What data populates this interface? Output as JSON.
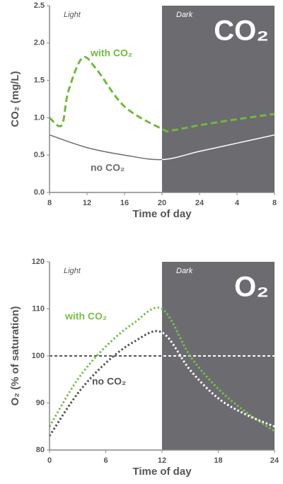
{
  "chart_data": [
    {
      "type": "line",
      "badge": "CO₂",
      "region_labels": [
        "Light",
        "Dark"
      ],
      "xlabel": "Time of day",
      "ylabel": "CO₂ (mg/L)",
      "xlim": [
        8,
        32
      ],
      "xticks": [
        8,
        12,
        16,
        20,
        24,
        {
          "value": 28,
          "label": "4"
        },
        {
          "value": 32,
          "label": "8"
        }
      ],
      "ylim": [
        0,
        2.5
      ],
      "yticks": [
        {
          "value": 0,
          "label": "0.0"
        },
        0.5,
        {
          "value": 1,
          "label": "1.0"
        },
        1.5,
        {
          "value": 2,
          "label": "2.0"
        },
        2.5
      ],
      "dark_xrange": [
        20,
        32
      ],
      "dark_color": "#6b6b70",
      "series": [
        {
          "name": "with CO₂",
          "color": "#6fba3c",
          "dark_line_color": "#6fba3c",
          "dash": "dashed",
          "x": [
            8,
            9.3,
            10,
            11.5,
            13,
            16,
            20,
            21,
            24,
            28,
            32
          ],
          "values": [
            1.0,
            0.9,
            1.35,
            1.8,
            1.65,
            1.15,
            0.85,
            0.83,
            0.9,
            0.98,
            1.05
          ]
        },
        {
          "name": "no CO₂",
          "color": "#6d6d6d",
          "dark_line_color": "#ffffff",
          "dash": "solid",
          "x": [
            8,
            12,
            16,
            20,
            24,
            28,
            32
          ],
          "values": [
            0.77,
            0.6,
            0.5,
            0.44,
            0.55,
            0.66,
            0.77
          ]
        }
      ]
    },
    {
      "type": "line",
      "badge": "O₂",
      "region_labels": [
        "Light",
        "Dark"
      ],
      "xlabel": "Time of day",
      "ylabel": "O₂ (% of saturation)",
      "xlim": [
        0,
        24
      ],
      "xticks": [
        0,
        6,
        12,
        18,
        24
      ],
      "ylim": [
        80,
        120
      ],
      "yticks": [
        80,
        90,
        100,
        110,
        120
      ],
      "dark_xrange": [
        12,
        24
      ],
      "dark_color": "#6b6b70",
      "reference_line": 100,
      "reference_color": "#555555",
      "reference_dark_color": "#ffffff",
      "series": [
        {
          "name": "with CO₂",
          "color": "#78c04a",
          "dark_line_color": "#78c04a",
          "dash": "dotted",
          "x": [
            0,
            3,
            6,
            9,
            12,
            15,
            18,
            21,
            24
          ],
          "values": [
            85,
            95,
            102,
            107,
            110,
            100,
            93,
            88,
            84
          ]
        },
        {
          "name": "no CO₂",
          "color": "#555555",
          "dark_line_color": "#ffffff",
          "dash": "dotted",
          "x": [
            0,
            3,
            6,
            9,
            12,
            15,
            18,
            21,
            24
          ],
          "values": [
            83,
            92,
            98.5,
            103,
            105,
            97,
            91,
            87.5,
            85
          ]
        }
      ]
    }
  ]
}
